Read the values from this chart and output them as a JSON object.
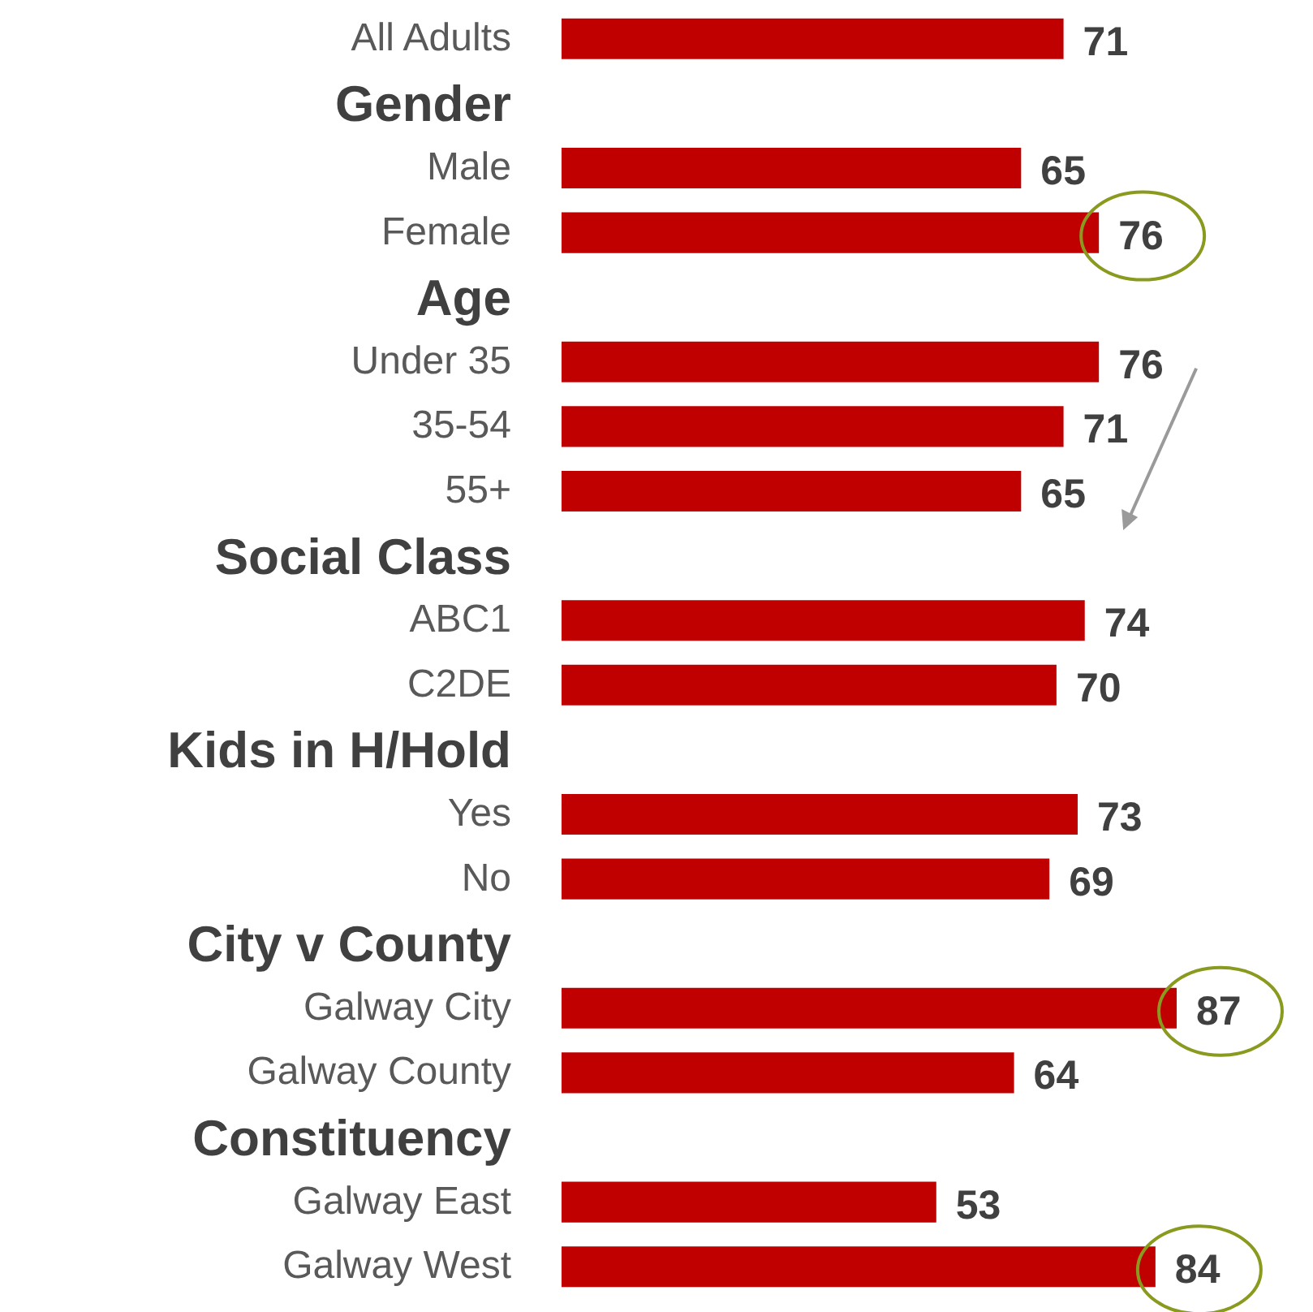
{
  "chart_data": {
    "type": "bar",
    "orientation": "horizontal",
    "categories": [
      "All Adults",
      "Gender",
      "Male",
      "Female",
      "Age",
      "Under 35",
      "35-54",
      "55+",
      "Social Class",
      "ABC1",
      "C2DE",
      "Kids in H/Hold",
      "Yes",
      "No",
      "City v County",
      "Galway City",
      "Galway County",
      "Constituency",
      "Galway East",
      "Galway West"
    ],
    "values": [
      71,
      null,
      65,
      76,
      null,
      76,
      71,
      65,
      null,
      74,
      70,
      null,
      73,
      69,
      null,
      87,
      64,
      null,
      53,
      84
    ],
    "color": "#c00000",
    "data_labels": true
  }
}
